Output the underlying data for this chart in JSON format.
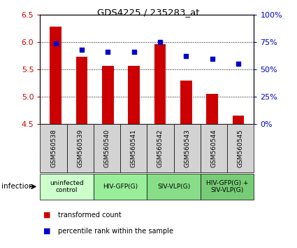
{
  "title": "GDS4225 / 235283_at",
  "samples": [
    "GSM560538",
    "GSM560539",
    "GSM560540",
    "GSM560541",
    "GSM560542",
    "GSM560543",
    "GSM560544",
    "GSM560545"
  ],
  "bar_values": [
    6.28,
    5.73,
    5.56,
    5.56,
    5.97,
    5.3,
    5.05,
    4.65
  ],
  "dot_values": [
    74,
    68,
    66,
    66,
    75,
    62,
    60,
    55
  ],
  "ylim_left": [
    4.5,
    6.5
  ],
  "ylim_right": [
    0,
    100
  ],
  "yticks_left": [
    4.5,
    5.0,
    5.5,
    6.0,
    6.5
  ],
  "yticks_right": [
    0,
    25,
    50,
    75,
    100
  ],
  "bar_color": "#cc0000",
  "dot_color": "#0000cc",
  "bar_base": 4.5,
  "groups": [
    {
      "label": "uninfected\ncontrol",
      "start": 0,
      "end": 2,
      "color": "#ccffcc"
    },
    {
      "label": "HIV-GFP(G)",
      "start": 2,
      "end": 4,
      "color": "#99ee99"
    },
    {
      "label": "SIV-VLP(G)",
      "start": 4,
      "end": 6,
      "color": "#88dd88"
    },
    {
      "label": "HIV-GFP(G) +\nSIV-VLP(G)",
      "start": 6,
      "end": 8,
      "color": "#77cc77"
    }
  ],
  "legend_bar_label": "transformed count",
  "legend_dot_label": "percentile rank within the sample",
  "infection_label": "infection",
  "bar_color_legend": "#cc0000",
  "dot_color_legend": "#0000cc",
  "tick_color_left": "#cc0000",
  "tick_color_right": "#0000cc",
  "sample_box_color": "#d3d3d3",
  "bar_width": 0.45
}
